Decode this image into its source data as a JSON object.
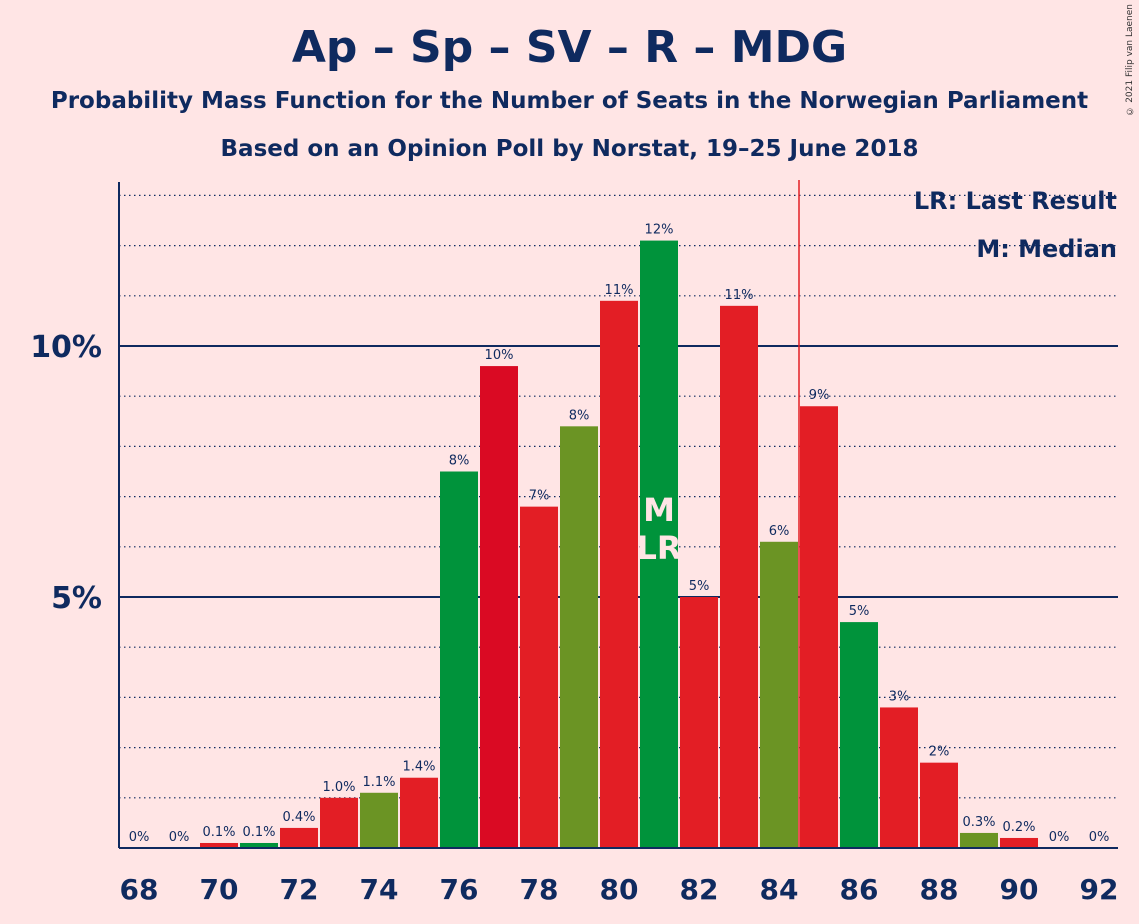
{
  "title": "Ap – Sp – SV – R – MDG",
  "subtitle": "Probability Mass Function for the Number of Seats in the Norwegian Parliament",
  "subtitle2": "Based on an Opinion Poll by Norstat, 19–25 June 2018",
  "copyright": "© 2021 Filip van Laenen",
  "colors": {
    "background": "#FFE5E5",
    "text": "#0F2A5F",
    "red": "#E31E25",
    "green": "#00933B",
    "olive": "#6B9424",
    "darkred": "#DA0A23",
    "lr_line": "#E31E25"
  },
  "chart_data": {
    "type": "bar",
    "x": [
      68,
      69,
      70,
      71,
      72,
      73,
      74,
      75,
      76,
      77,
      78,
      79,
      80,
      81,
      82,
      83,
      84,
      85,
      86,
      87,
      88,
      89,
      90,
      91,
      92
    ],
    "values": [
      0,
      0,
      0.1,
      0.1,
      0.4,
      1.0,
      1.1,
      1.4,
      7.5,
      9.6,
      6.8,
      8.4,
      10.9,
      12.1,
      5.0,
      10.8,
      6.1,
      8.8,
      4.5,
      2.8,
      1.7,
      0.3,
      0.2,
      0,
      0
    ],
    "labels": [
      "0%",
      "0%",
      "0.1%",
      "0.1%",
      "0.4%",
      "1.0%",
      "1.1%",
      "1.4%",
      "8%",
      "10%",
      "7%",
      "8%",
      "11%",
      "12%",
      "5%",
      "11%",
      "6%",
      "9%",
      "5%",
      "3%",
      "2%",
      "0.3%",
      "0.2%",
      "0%",
      "0%"
    ],
    "bar_colors": [
      "#E31E25",
      "#E31E25",
      "#E31E25",
      "#00933B",
      "#E31E25",
      "#E31E25",
      "#6B9424",
      "#E31E25",
      "#00933B",
      "#DA0A23",
      "#E31E25",
      "#6B9424",
      "#E31E25",
      "#00933B",
      "#E31E25",
      "#E31E25",
      "#6B9424",
      "#E31E25",
      "#00933B",
      "#E31E25",
      "#E31E25",
      "#6B9424",
      "#E31E25",
      "#E31E25",
      "#E31E25"
    ],
    "x_ticks": [
      "68",
      "70",
      "72",
      "74",
      "76",
      "78",
      "80",
      "82",
      "84",
      "86",
      "88",
      "90",
      "92"
    ],
    "y_ticks": [
      {
        "value": 5,
        "label": "5%"
      },
      {
        "value": 10,
        "label": "10%"
      }
    ],
    "ylim": [
      0,
      13
    ],
    "minor_grid_step": 1,
    "last_result": 85,
    "median": 81,
    "median_marker": "M",
    "last_result_marker": "LR",
    "legend": [
      "LR: Last Result",
      "M: Median"
    ],
    "legend_position": "top-right"
  }
}
